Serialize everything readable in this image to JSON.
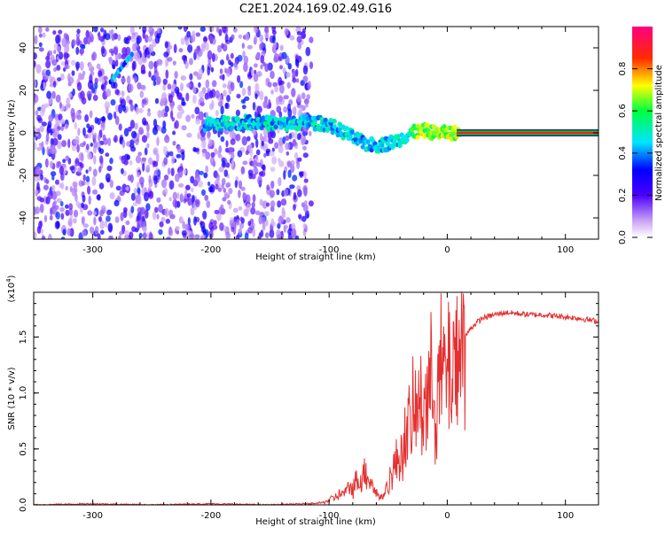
{
  "title": "C2E1.2024.169.02.49.G16",
  "chart_data": [
    {
      "type": "heatmap",
      "xlabel": "Height of straight line (km)",
      "ylabel": "Frequency (Hz)",
      "xlim": [
        -350,
        128
      ],
      "ylim": [
        -50,
        50
      ],
      "xticks": [
        -300,
        -200,
        -100,
        0,
        100
      ],
      "yticks": [
        -40,
        -20,
        0,
        20,
        40
      ],
      "colorbar": {
        "label": "Normalized spectral amplitude",
        "range": [
          0,
          1
        ],
        "ticks": [
          0.0,
          0.2,
          0.4,
          0.6,
          0.8
        ],
        "colors": [
          "#ffffff",
          "#8a2be2",
          "#0000ff",
          "#00ffff",
          "#00ff00",
          "#ffff00",
          "#ff0000",
          "#ff0080"
        ]
      },
      "trace": {
        "x": [
          -200,
          -180,
          -160,
          -140,
          -120,
          -100,
          -90,
          -80,
          -70,
          -60,
          -50,
          -40,
          -30,
          -20,
          -10,
          0,
          10,
          50,
          100,
          128
        ],
        "y": [
          4,
          5,
          5,
          4,
          5,
          4,
          1,
          -2,
          -5,
          -6,
          -5,
          -3,
          0,
          1,
          0,
          0,
          0,
          0,
          0,
          0
        ]
      }
    },
    {
      "type": "line",
      "xlabel": "Height of straight line (km)",
      "ylabel": "SNR (10 * v/v)",
      "ylabel_scale": "(x10",
      "ylabel_scale_exp": "4",
      "ylabel_scale_close": ")",
      "xlim": [
        -350,
        128
      ],
      "ylim": [
        0,
        1.9
      ],
      "xticks": [
        -300,
        -200,
        -100,
        0,
        100
      ],
      "yticks": [
        0.0,
        0.5,
        1.0,
        1.5
      ],
      "series": [
        {
          "color": "#e53030",
          "x": [
            -350,
            -300,
            -250,
            -200,
            -150,
            -120,
            -105,
            -95,
            -85,
            -75,
            -68,
            -60,
            -55,
            -48,
            -40,
            -32,
            -25,
            -18,
            -10,
            -5,
            0,
            5,
            10,
            15,
            20,
            25,
            30,
            40,
            50,
            60,
            70,
            80,
            90,
            100,
            110,
            128
          ],
          "y": [
            0.0,
            0.01,
            0.0,
            0.01,
            0.0,
            0.01,
            0.02,
            0.07,
            0.12,
            0.22,
            0.3,
            0.1,
            0.06,
            0.25,
            0.45,
            0.7,
            0.85,
            1.0,
            1.05,
            1.15,
            1.2,
            1.3,
            1.4,
            1.5,
            1.58,
            1.63,
            1.67,
            1.7,
            1.72,
            1.71,
            1.7,
            1.7,
            1.69,
            1.68,
            1.67,
            1.64
          ]
        }
      ]
    }
  ]
}
